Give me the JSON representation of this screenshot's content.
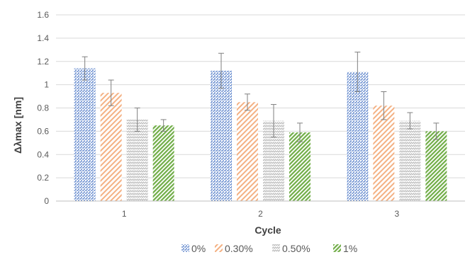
{
  "chart_data": {
    "type": "bar",
    "title": "",
    "xlabel": "Cycle",
    "ylabel": "Δλmax  [nm]",
    "categories": [
      "1",
      "2",
      "3"
    ],
    "ylim": [
      0,
      1.6
    ],
    "yticks": [
      0,
      0.2,
      0.4,
      0.6,
      0.8,
      1,
      1.2,
      1.4,
      1.6
    ],
    "grid": "horizontal",
    "legend_position": "bottom",
    "series": [
      {
        "name": "0%",
        "values": [
          1.14,
          1.12,
          1.11
        ],
        "errors": [
          0.1,
          0.15,
          0.17
        ],
        "color": "#4472c4",
        "pattern": "dots"
      },
      {
        "name": "0.30%",
        "values": [
          0.93,
          0.85,
          0.82
        ],
        "errors": [
          0.11,
          0.07,
          0.12
        ],
        "color": "#f4b183",
        "pattern": "diag-light"
      },
      {
        "name": "0.50%",
        "values": [
          0.7,
          0.69,
          0.69
        ],
        "errors": [
          0.1,
          0.14,
          0.07
        ],
        "color": "#bfbfbf",
        "pattern": "zigzag"
      },
      {
        "name": "1%",
        "values": [
          0.65,
          0.59,
          0.6
        ],
        "errors": [
          0.05,
          0.08,
          0.07
        ],
        "color": "#70ad47",
        "pattern": "diag-dark"
      }
    ]
  }
}
